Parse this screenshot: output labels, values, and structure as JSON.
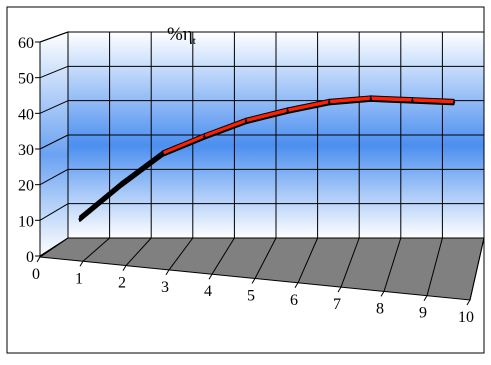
{
  "chart_data": {
    "type": "line",
    "title": "",
    "xlabel": "",
    "ylabel": "%η",
    "ylabel_subscript": "t",
    "x": [
      1,
      2,
      3,
      4,
      5,
      6,
      7,
      8,
      9,
      10
    ],
    "x_ticks": [
      "0",
      "1",
      "2",
      "3",
      "4",
      "5",
      "6",
      "7",
      "8",
      "9",
      "10"
    ],
    "y_ticks": [
      "0",
      "10",
      "20",
      "30",
      "40",
      "50",
      "60"
    ],
    "xlim": [
      0,
      10
    ],
    "ylim": [
      0,
      60
    ],
    "series": [
      {
        "values": [
          9,
          19,
          28,
          33,
          37.5,
          40.5,
          43,
          44,
          43.5,
          43
        ]
      }
    ],
    "style": "3d-ribbon",
    "grid": true,
    "legend": "none",
    "colors": {
      "line_start": "#000000",
      "line_end": "#ff2000",
      "wall_top": "#ffffff",
      "wall_mid": "#4c8ff0",
      "wall_bottom": "#ffffff",
      "floor": "#808080"
    }
  }
}
